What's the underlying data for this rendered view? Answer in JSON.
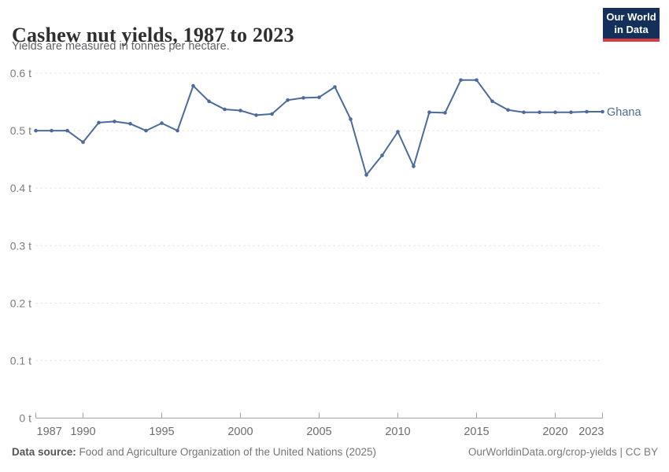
{
  "header": {
    "title": "Cashew nut yields, 1987 to 2023",
    "subtitle": "Yields are measured in tonnes per hectare.",
    "logo": {
      "line1": "Our World",
      "line2": "in Data",
      "bg_color": "#12305a",
      "accent_color": "#d73c45"
    }
  },
  "chart_data": {
    "type": "line",
    "title": "Cashew nut yields, 1987 to 2023",
    "subtitle": "Yields are measured in tonnes per hectare.",
    "unit": "t",
    "xlim": [
      1987,
      2023
    ],
    "ylim": [
      0,
      0.6
    ],
    "grid": "horizontal-dashed",
    "legend_position": "end-of-line-label",
    "x_ticks": [
      1987,
      1990,
      1995,
      2000,
      2005,
      2010,
      2015,
      2020,
      2023
    ],
    "y_ticks": [
      {
        "value": 0,
        "label": "0 t"
      },
      {
        "value": 0.1,
        "label": "0.1 t"
      },
      {
        "value": 0.2,
        "label": "0.2 t"
      },
      {
        "value": 0.3,
        "label": "0.3 t"
      },
      {
        "value": 0.4,
        "label": "0.4 t"
      },
      {
        "value": 0.5,
        "label": "0.5 t"
      },
      {
        "value": 0.6,
        "label": "0.6 t"
      }
    ],
    "x": [
      1987,
      1988,
      1989,
      1990,
      1991,
      1992,
      1993,
      1994,
      1995,
      1996,
      1997,
      1998,
      1999,
      2000,
      2001,
      2002,
      2003,
      2004,
      2005,
      2006,
      2007,
      2008,
      2009,
      2010,
      2011,
      2012,
      2013,
      2014,
      2015,
      2016,
      2017,
      2018,
      2019,
      2020,
      2021,
      2022,
      2023
    ],
    "series": [
      {
        "name": "Ghana",
        "color": "#4c6a9c",
        "values": [
          0.5,
          0.5,
          0.5,
          0.48,
          0.514,
          0.516,
          0.512,
          0.5,
          0.513,
          0.5,
          0.578,
          0.551,
          0.537,
          0.535,
          0.527,
          0.529,
          0.553,
          0.557,
          0.558,
          0.576,
          0.52,
          0.423,
          0.457,
          0.498,
          0.438,
          0.532,
          0.531,
          0.588,
          0.588,
          0.551,
          0.536,
          0.532,
          0.532,
          0.532,
          0.532,
          0.533,
          0.533
        ]
      }
    ]
  },
  "colors": {
    "gridline": "#dcdcdc",
    "axis": "#a3a3a3",
    "x_tick_label": "#6d6d6d",
    "y_tick_label": "#7d7d7d"
  },
  "footer": {
    "source_label": "Data source:",
    "source_text": "Food and Agriculture Organization of the United Nations (2025)",
    "credit": "OurWorldinData.org/crop-yields | CC BY"
  }
}
